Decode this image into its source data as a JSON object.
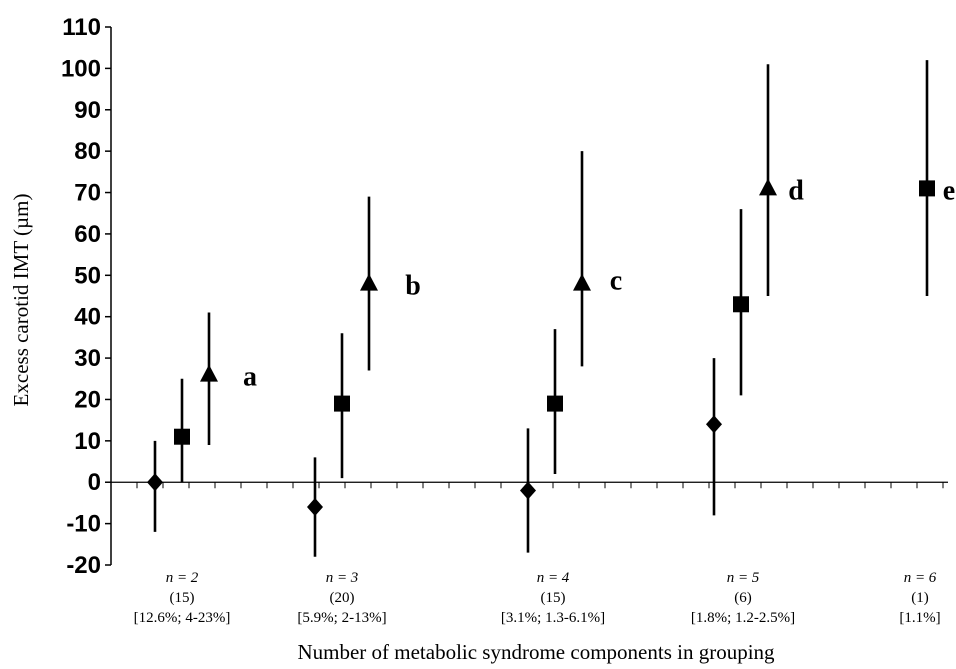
{
  "chart_data": {
    "type": "scatter",
    "ylabel": "Excess carotid IMT (µm)",
    "xlabel": "Number of metabolic syndrome components in grouping",
    "ylim": [
      -20,
      110
    ],
    "yticks": [
      -20,
      -10,
      0,
      10,
      20,
      30,
      40,
      50,
      60,
      70,
      80,
      90,
      100,
      110
    ],
    "grid": false,
    "marker_shapes": [
      "diamond",
      "square",
      "triangle"
    ],
    "categories": [
      {
        "line1": "n = 2",
        "line2": "(15)",
        "line3": "[12.6%; 4-23%]"
      },
      {
        "line1": "n = 3",
        "line2": "(20)",
        "line3": "[5.9%; 2-13%]"
      },
      {
        "line1": "n = 4",
        "line2": "(15)",
        "line3": "[3.1%; 1.3-6.1%]"
      },
      {
        "line1": "n = 5",
        "line2": "(6)",
        "line3": "[1.8%; 1.2-2.5%]"
      },
      {
        "line1": "n = 6",
        "line2": "(1)",
        "line3": "[1.1%]"
      }
    ],
    "groups": [
      {
        "letter": "a",
        "points": [
          {
            "marker": "diamond",
            "value": 0,
            "low": -12,
            "high": 10
          },
          {
            "marker": "square",
            "value": 11,
            "low": 0,
            "high": 25
          },
          {
            "marker": "triangle",
            "value": 26,
            "low": 9,
            "high": 41
          }
        ]
      },
      {
        "letter": "b",
        "points": [
          {
            "marker": "diamond",
            "value": -6,
            "low": -18,
            "high": 6
          },
          {
            "marker": "square",
            "value": 19,
            "low": 1,
            "high": 36
          },
          {
            "marker": "triangle",
            "value": 48,
            "low": 27,
            "high": 69
          }
        ]
      },
      {
        "letter": "c",
        "points": [
          {
            "marker": "diamond",
            "value": -2,
            "low": -17,
            "high": 13
          },
          {
            "marker": "square",
            "value": 19,
            "low": 2,
            "high": 37
          },
          {
            "marker": "triangle",
            "value": 48,
            "low": 28,
            "high": 80
          }
        ]
      },
      {
        "letter": "d",
        "points": [
          {
            "marker": "diamond",
            "value": 14,
            "low": -8,
            "high": 30
          },
          {
            "marker": "square",
            "value": 43,
            "low": 21,
            "high": 66
          },
          {
            "marker": "triangle",
            "value": 71,
            "low": 45,
            "high": 101
          }
        ]
      },
      {
        "letter": "e",
        "points": [
          {
            "marker": "square",
            "value": 71,
            "low": 45,
            "high": 102
          }
        ]
      }
    ]
  }
}
